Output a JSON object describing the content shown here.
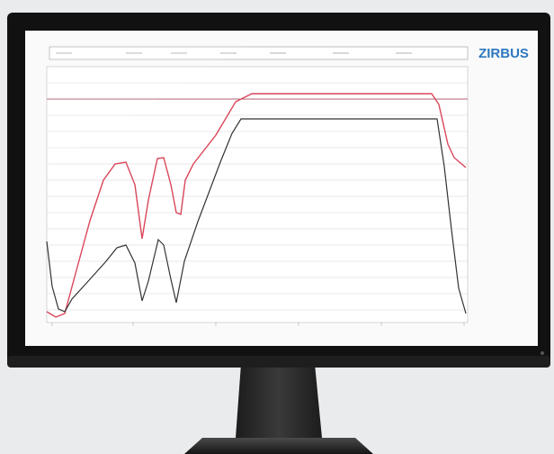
{
  "screen": {
    "logo": "ZIRBUS"
  }
}
